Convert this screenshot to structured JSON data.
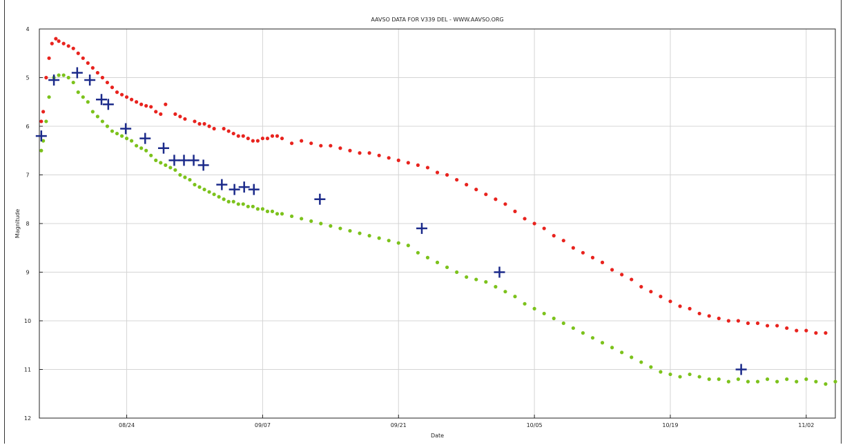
{
  "chart_data": {
    "type": "scatter",
    "title": "AAVSO DATA FOR V339 DEL - WWW.AAVSO.ORG",
    "xlabel": "Date",
    "ylabel": "Magnitude",
    "y_inverted": true,
    "ylim": [
      4,
      12
    ],
    "yticks": [
      "4",
      "5",
      "6",
      "7",
      "8",
      "9",
      "10",
      "11",
      "12"
    ],
    "x_units": "days from first tick (08/24 = 0)",
    "xlim": [
      -9,
      73
    ],
    "xticks": [
      {
        "label": "08/24",
        "x": 0
      },
      {
        "label": "09/07",
        "x": 14
      },
      {
        "label": "09/21",
        "x": 28
      },
      {
        "label": "10/05",
        "x": 42
      },
      {
        "label": "10/19",
        "x": 56
      },
      {
        "label": "11/02",
        "x": 70
      }
    ],
    "grid": true,
    "legend": "none",
    "series": [
      {
        "color": "#e8231e",
        "marker": "dot",
        "points": [
          [
            -8.8,
            5.9
          ],
          [
            -8.6,
            5.7
          ],
          [
            -8.3,
            5.0
          ],
          [
            -8,
            4.6
          ],
          [
            -7.7,
            4.3
          ],
          [
            -7.3,
            4.2
          ],
          [
            -7,
            4.25
          ],
          [
            -6.5,
            4.3
          ],
          [
            -6,
            4.35
          ],
          [
            -5.5,
            4.4
          ],
          [
            -5,
            4.5
          ],
          [
            -4.5,
            4.6
          ],
          [
            -4,
            4.7
          ],
          [
            -3.5,
            4.8
          ],
          [
            -3,
            4.9
          ],
          [
            -2.5,
            5.0
          ],
          [
            -2,
            5.1
          ],
          [
            -1.5,
            5.2
          ],
          [
            -1,
            5.3
          ],
          [
            -0.5,
            5.35
          ],
          [
            0,
            5.4
          ],
          [
            0.5,
            5.45
          ],
          [
            1,
            5.5
          ],
          [
            1.5,
            5.55
          ],
          [
            2,
            5.58
          ],
          [
            2.5,
            5.6
          ],
          [
            3,
            5.7
          ],
          [
            3.5,
            5.75
          ],
          [
            4,
            5.55
          ],
          [
            5,
            5.75
          ],
          [
            5.5,
            5.8
          ],
          [
            6,
            5.85
          ],
          [
            7,
            5.9
          ],
          [
            7.5,
            5.95
          ],
          [
            8,
            5.95
          ],
          [
            8.5,
            6.0
          ],
          [
            9,
            6.05
          ],
          [
            10,
            6.05
          ],
          [
            10.5,
            6.1
          ],
          [
            11,
            6.15
          ],
          [
            11.5,
            6.2
          ],
          [
            12,
            6.2
          ],
          [
            12.5,
            6.25
          ],
          [
            13,
            6.3
          ],
          [
            13.5,
            6.3
          ],
          [
            14,
            6.25
          ],
          [
            14.5,
            6.25
          ],
          [
            15,
            6.2
          ],
          [
            15.5,
            6.2
          ],
          [
            16,
            6.25
          ],
          [
            17,
            6.35
          ],
          [
            18,
            6.3
          ],
          [
            19,
            6.35
          ],
          [
            20,
            6.4
          ],
          [
            21,
            6.4
          ],
          [
            22,
            6.45
          ],
          [
            23,
            6.5
          ],
          [
            24,
            6.55
          ],
          [
            25,
            6.55
          ],
          [
            26,
            6.6
          ],
          [
            27,
            6.65
          ],
          [
            28,
            6.7
          ],
          [
            29,
            6.75
          ],
          [
            30,
            6.8
          ],
          [
            31,
            6.85
          ],
          [
            32,
            6.95
          ],
          [
            33,
            7.0
          ],
          [
            34,
            7.1
          ],
          [
            35,
            7.2
          ],
          [
            36,
            7.3
          ],
          [
            37,
            7.4
          ],
          [
            38,
            7.5
          ],
          [
            39,
            7.6
          ],
          [
            40,
            7.75
          ],
          [
            41,
            7.9
          ],
          [
            42,
            8.0
          ],
          [
            43,
            8.1
          ],
          [
            44,
            8.25
          ],
          [
            45,
            8.35
          ],
          [
            46,
            8.5
          ],
          [
            47,
            8.6
          ],
          [
            48,
            8.7
          ],
          [
            49,
            8.8
          ],
          [
            50,
            8.95
          ],
          [
            51,
            9.05
          ],
          [
            52,
            9.15
          ],
          [
            53,
            9.3
          ],
          [
            54,
            9.4
          ],
          [
            55,
            9.5
          ],
          [
            56,
            9.6
          ],
          [
            57,
            9.7
          ],
          [
            58,
            9.75
          ],
          [
            59,
            9.85
          ],
          [
            60,
            9.9
          ],
          [
            61,
            9.95
          ],
          [
            62,
            10.0
          ],
          [
            63,
            10.0
          ],
          [
            64,
            10.05
          ],
          [
            65,
            10.05
          ],
          [
            66,
            10.1
          ],
          [
            67,
            10.1
          ],
          [
            68,
            10.15
          ],
          [
            69,
            10.2
          ],
          [
            70,
            10.2
          ],
          [
            71,
            10.25
          ],
          [
            72,
            10.25
          ]
        ]
      },
      {
        "color": "#7cc21c",
        "marker": "dot",
        "points": [
          [
            -8.8,
            6.5
          ],
          [
            -8.6,
            6.3
          ],
          [
            -8.3,
            5.9
          ],
          [
            -8,
            5.4
          ],
          [
            -7.5,
            5.0
          ],
          [
            -7,
            4.95
          ],
          [
            -6.5,
            4.95
          ],
          [
            -6,
            5.0
          ],
          [
            -5.5,
            5.1
          ],
          [
            -5,
            5.3
          ],
          [
            -4.5,
            5.4
          ],
          [
            -4,
            5.5
          ],
          [
            -3.5,
            5.7
          ],
          [
            -3,
            5.8
          ],
          [
            -2.5,
            5.9
          ],
          [
            -2,
            6.0
          ],
          [
            -1.5,
            6.1
          ],
          [
            -1,
            6.15
          ],
          [
            -0.5,
            6.2
          ],
          [
            0,
            6.25
          ],
          [
            0.5,
            6.3
          ],
          [
            1,
            6.4
          ],
          [
            1.5,
            6.45
          ],
          [
            2,
            6.5
          ],
          [
            2.5,
            6.6
          ],
          [
            3,
            6.7
          ],
          [
            3.5,
            6.75
          ],
          [
            4,
            6.8
          ],
          [
            4.5,
            6.85
          ],
          [
            5,
            6.9
          ],
          [
            5.5,
            7.0
          ],
          [
            6,
            7.05
          ],
          [
            6.5,
            7.1
          ],
          [
            7,
            7.2
          ],
          [
            7.5,
            7.25
          ],
          [
            8,
            7.3
          ],
          [
            8.5,
            7.35
          ],
          [
            9,
            7.4
          ],
          [
            9.5,
            7.45
          ],
          [
            10,
            7.5
          ],
          [
            10.5,
            7.55
          ],
          [
            11,
            7.55
          ],
          [
            11.5,
            7.6
          ],
          [
            12,
            7.6
          ],
          [
            12.5,
            7.65
          ],
          [
            13,
            7.65
          ],
          [
            13.5,
            7.7
          ],
          [
            14,
            7.7
          ],
          [
            14.5,
            7.75
          ],
          [
            15,
            7.75
          ],
          [
            15.5,
            7.8
          ],
          [
            16,
            7.8
          ],
          [
            17,
            7.85
          ],
          [
            18,
            7.9
          ],
          [
            19,
            7.95
          ],
          [
            20,
            8.0
          ],
          [
            21,
            8.05
          ],
          [
            22,
            8.1
          ],
          [
            23,
            8.15
          ],
          [
            24,
            8.2
          ],
          [
            25,
            8.25
          ],
          [
            26,
            8.3
          ],
          [
            27,
            8.35
          ],
          [
            28,
            8.4
          ],
          [
            29,
            8.45
          ],
          [
            30,
            8.6
          ],
          [
            31,
            8.7
          ],
          [
            32,
            8.8
          ],
          [
            33,
            8.9
          ],
          [
            34,
            9.0
          ],
          [
            35,
            9.1
          ],
          [
            36,
            9.15
          ],
          [
            37,
            9.2
          ],
          [
            38,
            9.3
          ],
          [
            39,
            9.4
          ],
          [
            40,
            9.5
          ],
          [
            41,
            9.65
          ],
          [
            42,
            9.75
          ],
          [
            43,
            9.85
          ],
          [
            44,
            9.95
          ],
          [
            45,
            10.05
          ],
          [
            46,
            10.15
          ],
          [
            47,
            10.25
          ],
          [
            48,
            10.35
          ],
          [
            49,
            10.45
          ],
          [
            50,
            10.55
          ],
          [
            51,
            10.65
          ],
          [
            52,
            10.75
          ],
          [
            53,
            10.85
          ],
          [
            54,
            10.95
          ],
          [
            55,
            11.05
          ],
          [
            56,
            11.1
          ],
          [
            57,
            11.15
          ],
          [
            58,
            11.1
          ],
          [
            59,
            11.15
          ],
          [
            60,
            11.2
          ],
          [
            61,
            11.2
          ],
          [
            62,
            11.25
          ],
          [
            63,
            11.2
          ],
          [
            64,
            11.25
          ],
          [
            65,
            11.25
          ],
          [
            66,
            11.2
          ],
          [
            67,
            11.25
          ],
          [
            68,
            11.2
          ],
          [
            69,
            11.25
          ],
          [
            70,
            11.2
          ],
          [
            71,
            11.25
          ],
          [
            72,
            11.3
          ],
          [
            73,
            11.25
          ]
        ]
      },
      {
        "color": "#1b2a8a",
        "marker": "plus",
        "points": [
          [
            -8.8,
            6.2
          ],
          [
            -7.5,
            5.05
          ],
          [
            -5.1,
            4.9
          ],
          [
            -3.8,
            5.05
          ],
          [
            -2.6,
            5.45
          ],
          [
            -1.9,
            5.55
          ],
          [
            -0.1,
            6.05
          ],
          [
            1.9,
            6.25
          ],
          [
            3.8,
            6.45
          ],
          [
            4.9,
            6.7
          ],
          [
            5.9,
            6.7
          ],
          [
            6.9,
            6.7
          ],
          [
            7.9,
            6.8
          ],
          [
            9.8,
            7.2
          ],
          [
            11.1,
            7.3
          ],
          [
            12.1,
            7.25
          ],
          [
            13.1,
            7.3
          ],
          [
            19.9,
            7.5
          ],
          [
            30.4,
            8.1
          ],
          [
            38.4,
            9.0
          ],
          [
            63.3,
            11.0
          ]
        ]
      }
    ]
  }
}
